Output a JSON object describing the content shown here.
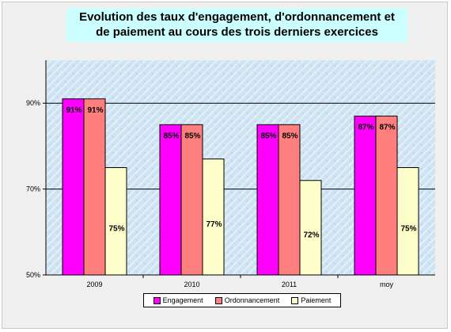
{
  "colors": {
    "engagement": "#ff00ff",
    "ordonnancement": "#ff7f7f",
    "paiement": "#ffffcc",
    "title_background": "#ccffff",
    "plot_background": "#cfe4f2"
  },
  "chart_data": {
    "type": "bar",
    "title_lines": [
      "Evolution des taux d'engagement, d'ordonnancement et",
      "de paiement au cours des trois derniers exercices"
    ],
    "categories": [
      "2009",
      "2010",
      "2011",
      "moy"
    ],
    "series": [
      {
        "name": "Engagement",
        "values": [
          91,
          85,
          85,
          87
        ],
        "labels": [
          "91%",
          "85%",
          "85%",
          "87%"
        ]
      },
      {
        "name": "Ordonnancement",
        "values": [
          91,
          85,
          85,
          87
        ],
        "labels": [
          "91%",
          "85%",
          "85%",
          "87%"
        ]
      },
      {
        "name": "Paiement",
        "values": [
          75,
          77,
          72,
          75
        ],
        "labels": [
          "75%",
          "77%",
          "72%",
          "75%"
        ]
      }
    ],
    "ylim": [
      50,
      100
    ],
    "yticks": [
      50,
      70,
      90
    ],
    "ytick_labels": [
      "50%",
      "70%",
      "90%"
    ],
    "grid": true,
    "legend_position": "bottom"
  }
}
